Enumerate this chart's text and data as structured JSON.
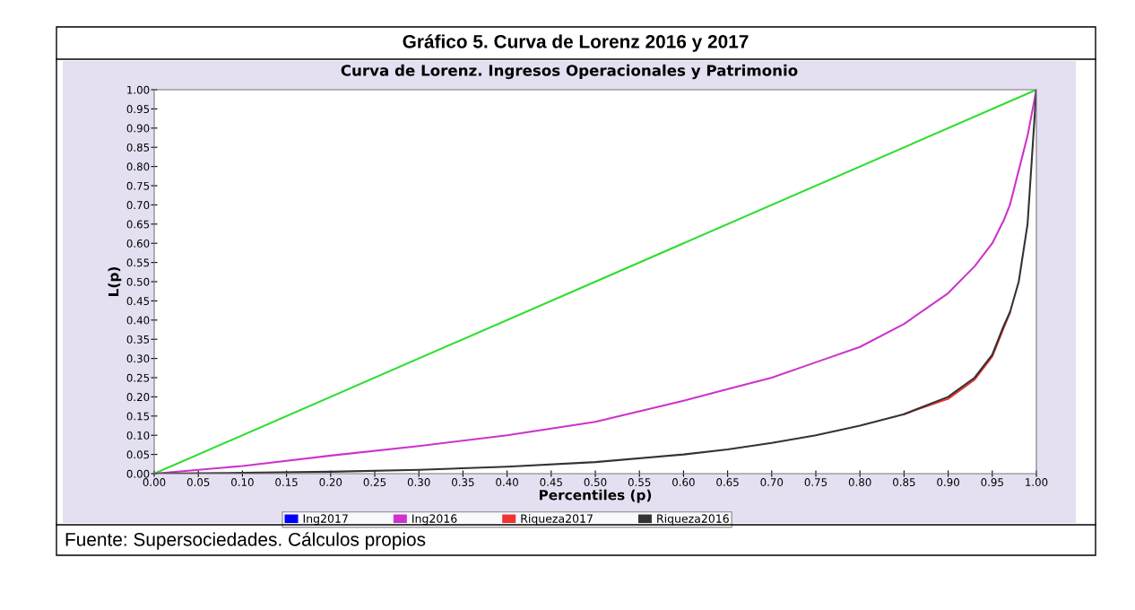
{
  "chart_data": {
    "type": "line",
    "title": "Gráfico 5. Curva de Lorenz 2016 y 2017",
    "subtitle": "Curva de Lorenz. Ingresos Operacionales y Patrimonio",
    "xlabel": "Percentiles (p)",
    "ylabel": "L(p)",
    "annotations": [
      "Fuente: Supersociedades. Cálculos propios"
    ],
    "x": [
      0,
      0.05,
      0.1,
      0.2,
      0.3,
      0.4,
      0.5,
      0.6,
      0.65,
      0.7,
      0.75,
      0.8,
      0.85,
      0.9,
      0.93,
      0.95,
      0.963,
      0.97,
      0.98,
      0.99,
      1.0
    ],
    "series": [
      {
        "color": "#33dd33",
        "x": [
          0,
          1
        ],
        "values": [
          0,
          1
        ]
      },
      {
        "name": "Ing2017",
        "color": "#0000ff",
        "values": [
          null,
          null,
          null,
          null,
          null,
          null,
          null,
          null,
          null,
          null,
          null,
          null,
          null,
          null,
          null,
          null,
          null,
          null,
          null,
          null,
          null
        ]
      },
      {
        "name": "Ing2016",
        "color": "#cc33cc",
        "values": [
          0,
          0.01,
          0.02,
          0.047,
          0.072,
          0.1,
          0.135,
          0.19,
          0.22,
          0.25,
          0.29,
          0.33,
          0.39,
          0.47,
          0.54,
          0.6,
          0.66,
          0.7,
          0.79,
          0.88,
          1.0
        ]
      },
      {
        "name": "Riqueza2017",
        "color": "#ee3333",
        "values": [
          null,
          null,
          null,
          null,
          null,
          null,
          null,
          null,
          null,
          null,
          null,
          null,
          0.155,
          0.195,
          0.245,
          0.305,
          0.38,
          0.42,
          null,
          null,
          null
        ]
      },
      {
        "name": "Riqueza2016",
        "color": "#333333",
        "values": [
          0,
          0.001,
          0.002,
          0.005,
          0.01,
          0.018,
          0.03,
          0.05,
          0.063,
          0.08,
          0.1,
          0.125,
          0.155,
          0.2,
          0.25,
          0.31,
          0.385,
          0.42,
          0.5,
          0.65,
          1.0
        ]
      }
    ],
    "xlim": [
      0,
      1
    ],
    "ylim": [
      0,
      1
    ],
    "xticks": [
      {
        "value": 0,
        "label": "0.00"
      },
      {
        "value": 0.05,
        "label": "0.05"
      },
      {
        "value": 0.1,
        "label": "0.10"
      },
      {
        "value": 0.15,
        "label": "0.15"
      },
      {
        "value": 0.2,
        "label": "0.20"
      },
      {
        "value": 0.25,
        "label": "0.25"
      },
      {
        "value": 0.3,
        "label": "0.30"
      },
      {
        "value": 0.35,
        "label": "0.35"
      },
      {
        "value": 0.4,
        "label": "0.40"
      },
      {
        "value": 0.45,
        "label": "0.45"
      },
      {
        "value": 0.5,
        "label": "0.50"
      },
      {
        "value": 0.55,
        "label": "0.55"
      },
      {
        "value": 0.6,
        "label": "0.60"
      },
      {
        "value": 0.65,
        "label": "0.65"
      },
      {
        "value": 0.7,
        "label": "0.70"
      },
      {
        "value": 0.75,
        "label": "0.75"
      },
      {
        "value": 0.8,
        "label": "0.80"
      },
      {
        "value": 0.85,
        "label": "0.85"
      },
      {
        "value": 0.9,
        "label": "0.90"
      },
      {
        "value": 0.95,
        "label": "0.95"
      },
      {
        "value": 1,
        "label": "1.00"
      }
    ],
    "yticks": [
      {
        "value": 0,
        "label": "0.00"
      },
      {
        "value": 0.05,
        "label": "0.05"
      },
      {
        "value": 0.1,
        "label": "0.10"
      },
      {
        "value": 0.15,
        "label": "0.15"
      },
      {
        "value": 0.2,
        "label": "0.20"
      },
      {
        "value": 0.25,
        "label": "0.25"
      },
      {
        "value": 0.3,
        "label": "0.30"
      },
      {
        "value": 0.35,
        "label": "0.35"
      },
      {
        "value": 0.4,
        "label": "0.40"
      },
      {
        "value": 0.45,
        "label": "0.45"
      },
      {
        "value": 0.5,
        "label": "0.50"
      },
      {
        "value": 0.55,
        "label": "0.55"
      },
      {
        "value": 0.6,
        "label": "0.60"
      },
      {
        "value": 0.65,
        "label": "0.65"
      },
      {
        "value": 0.7,
        "label": "0.70"
      },
      {
        "value": 0.75,
        "label": "0.75"
      },
      {
        "value": 0.8,
        "label": "0.80"
      },
      {
        "value": 0.85,
        "label": "0.85"
      },
      {
        "value": 0.9,
        "label": "0.90"
      },
      {
        "value": 0.95,
        "label": "0.95"
      },
      {
        "value": 1,
        "label": "1.00"
      }
    ],
    "grid": false,
    "legend": "bottom",
    "marker": "none",
    "line_style": "solid"
  }
}
